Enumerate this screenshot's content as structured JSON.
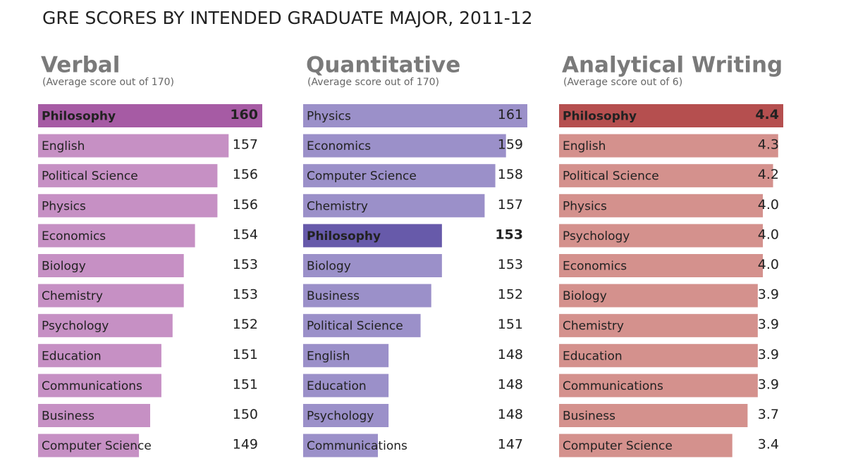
{
  "chart_data": [
    {
      "type": "bar",
      "orientation": "horizontal",
      "title": "Verbal",
      "subtitle": "(Average score out of 170)",
      "categories": [
        "Philosophy",
        "English",
        "Political Science",
        "Physics",
        "Economics",
        "Biology",
        "Chemistry",
        "Psychology",
        "Education",
        "Communications",
        "Business",
        "Computer Science"
      ],
      "values": [
        160,
        157,
        156,
        156,
        154,
        153,
        153,
        152,
        151,
        151,
        150,
        149
      ],
      "colors": [
        "#a65ba4",
        "#c690c4",
        "#c690c4",
        "#c690c4",
        "#c690c4",
        "#c690c4",
        "#c690c4",
        "#c690c4",
        "#c690c4",
        "#c690c4",
        "#c690c4",
        "#c690c4"
      ],
      "xlim": [
        140,
        160
      ]
    },
    {
      "type": "bar",
      "orientation": "horizontal",
      "title": "Quantitative",
      "subtitle": "(Average score out of 170)",
      "categories": [
        "Physics",
        "Economics",
        "Computer Science",
        "Chemistry",
        "Philosophy",
        "Biology",
        "Business",
        "Political Science",
        "English",
        "Education",
        "Psychology",
        "Communications"
      ],
      "values": [
        161,
        159,
        158,
        157,
        153,
        153,
        152,
        151,
        148,
        148,
        148,
        147
      ],
      "colors": [
        "#9b90c9",
        "#9b90c9",
        "#9b90c9",
        "#9b90c9",
        "#675aaa",
        "#9b90c9",
        "#9b90c9",
        "#9b90c9",
        "#9b90c9",
        "#9b90c9",
        "#9b90c9",
        "#9b90c9"
      ],
      "xlim": [
        140,
        161
      ]
    },
    {
      "type": "bar",
      "orientation": "horizontal",
      "title": "Analytical Writing",
      "subtitle": "(Average score out of 6)",
      "categories": [
        "Philosophy",
        "English",
        "Political Science",
        "Physics",
        "Psychology",
        "Economics",
        "Biology",
        "Chemistry",
        "Education",
        "Communications",
        "Business",
        "Computer Science"
      ],
      "values": [
        4.4,
        4.3,
        4.2,
        4.0,
        4.0,
        4.0,
        3.9,
        3.9,
        3.9,
        3.9,
        3.7,
        3.4
      ],
      "value_labels": [
        "4.4",
        "4.3",
        "4.2",
        "4.0",
        "4.0",
        "4.0",
        "3.9",
        "3.9",
        "3.9",
        "3.9",
        "3.7",
        "3.4"
      ],
      "colors": [
        "#b54f4f",
        "#d4918d",
        "#d4918d",
        "#d4918d",
        "#d4918d",
        "#d4918d",
        "#d4918d",
        "#d4918d",
        "#d4918d",
        "#d4918d",
        "#d4918d",
        "#d4918d"
      ],
      "xlim": [
        0,
        4.4
      ]
    }
  ],
  "subtitle": "GRE SCORES BY INTENDED GRADUATE MAJOR, 2011-12"
}
